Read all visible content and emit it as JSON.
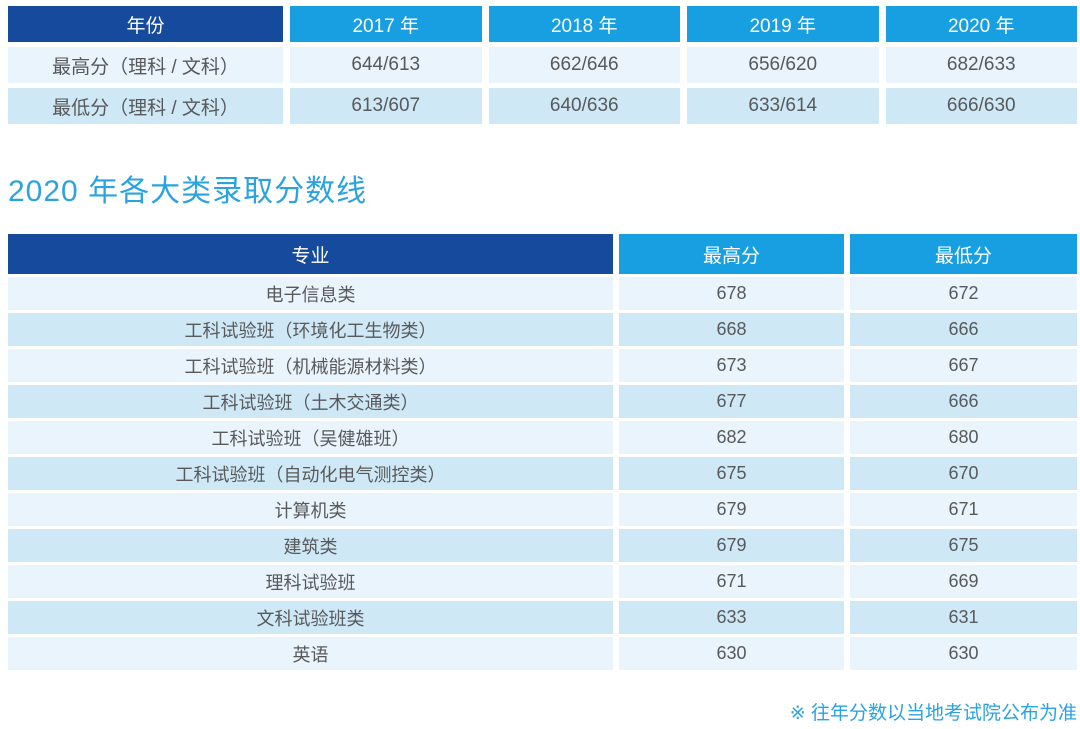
{
  "colors": {
    "header_navy": "#154a9c",
    "header_blue": "#189fe2",
    "row_light": "#e9f4fc",
    "row_dark": "#cfe8f6",
    "accent_blue": "#2aa3e0",
    "text_gray": "#58595b"
  },
  "history_table": {
    "corner_header": "年份",
    "year_headers": [
      "2017 年",
      "2018 年",
      "2019 年",
      "2020 年"
    ],
    "rows": [
      {
        "label": "最高分（理科 / 文科）",
        "values": [
          "644/613",
          "662/646",
          "656/620",
          "682/633"
        ]
      },
      {
        "label": "最低分（理科 / 文科）",
        "values": [
          "613/607",
          "640/636",
          "633/614",
          "666/630"
        ]
      }
    ]
  },
  "section_title": "2020 年各大类录取分数线",
  "majors_table": {
    "headers": {
      "major": "专业",
      "max": "最高分",
      "min": "最低分"
    },
    "rows": [
      {
        "major": "电子信息类",
        "max": "678",
        "min": "672"
      },
      {
        "major": "工科试验班（环境化工生物类）",
        "max": "668",
        "min": "666"
      },
      {
        "major": "工科试验班（机械能源材料类）",
        "max": "673",
        "min": "667"
      },
      {
        "major": "工科试验班（土木交通类）",
        "max": "677",
        "min": "666"
      },
      {
        "major": "工科试验班（吴健雄班）",
        "max": "682",
        "min": "680"
      },
      {
        "major": "工科试验班（自动化电气测控类）",
        "max": "675",
        "min": "670"
      },
      {
        "major": "计算机类",
        "max": "679",
        "min": "671"
      },
      {
        "major": "建筑类",
        "max": "679",
        "min": "675"
      },
      {
        "major": "理科试验班",
        "max": "671",
        "min": "669"
      },
      {
        "major": "文科试验班类",
        "max": "633",
        "min": "631"
      },
      {
        "major": "英语",
        "max": "630",
        "min": "630"
      }
    ]
  },
  "footnote": "※ 往年分数以当地考试院公布为准"
}
